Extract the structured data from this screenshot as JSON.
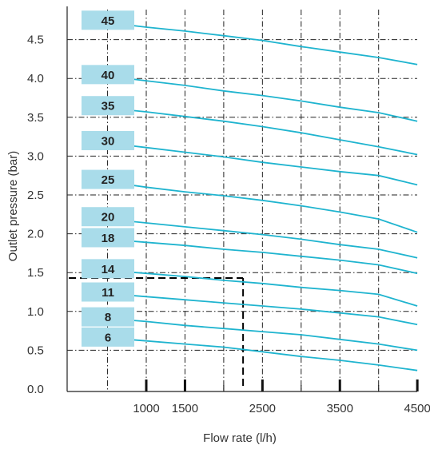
{
  "chart_data": {
    "type": "line",
    "xlabel": "Flow rate (l/h)",
    "ylabel": "Outlet pressure (bar)",
    "xlim": [
      0,
      4500
    ],
    "ylim": [
      0,
      5.0
    ],
    "x_ticks": [
      1000,
      1500,
      2500,
      3500,
      4500
    ],
    "x_tick_labels": [
      "1000",
      "1500",
      "2500",
      "3500",
      "4500"
    ],
    "x_unlabeled_ticks": [
      2000,
      3000,
      4000
    ],
    "y_ticks": [
      0,
      0.5,
      1.0,
      1.5,
      2.0,
      2.5,
      3.0,
      3.5,
      4.0,
      4.5
    ],
    "y_tick_labels": [
      "0.0",
      "0.5",
      "1.0",
      "1.5",
      "2.0",
      "2.5",
      "3.0",
      "3.5",
      "4.0",
      "4.5"
    ],
    "x_vertical_gridlines": [
      500,
      1000,
      1500,
      2000,
      2500,
      3000,
      3500,
      4000
    ],
    "grid": true,
    "grid_style": "dash-dot",
    "legend": "labels at left, on each curve",
    "line_color": "#1fb4cf",
    "label_box_color": "#a9dcea",
    "reference_color": "#000000",
    "series": [
      {
        "name": "45",
        "x": [
          0,
          500,
          1000,
          1500,
          2000,
          2500,
          3000,
          3500,
          4000,
          4500
        ],
        "y": [
          4.75,
          4.72,
          4.66,
          4.61,
          4.55,
          4.49,
          4.41,
          4.34,
          4.27,
          4.18
        ]
      },
      {
        "name": "40",
        "x": [
          0,
          500,
          1000,
          1500,
          2000,
          2500,
          3000,
          3500,
          4000,
          4500
        ],
        "y": [
          4.05,
          4.03,
          3.97,
          3.91,
          3.84,
          3.78,
          3.71,
          3.63,
          3.56,
          3.45
        ]
      },
      {
        "name": "35",
        "x": [
          0,
          500,
          1000,
          1500,
          2000,
          2500,
          3000,
          3500,
          4000,
          4500
        ],
        "y": [
          3.65,
          3.62,
          3.57,
          3.51,
          3.45,
          3.38,
          3.3,
          3.21,
          3.12,
          3.02
        ]
      },
      {
        "name": "30",
        "x": [
          0,
          500,
          1000,
          1500,
          2000,
          2500,
          3000,
          3500,
          4000,
          4500
        ],
        "y": [
          3.2,
          3.17,
          3.11,
          3.05,
          2.99,
          2.92,
          2.86,
          2.8,
          2.75,
          2.63
        ]
      },
      {
        "name": "25",
        "x": [
          0,
          500,
          1000,
          1500,
          2000,
          2500,
          3000,
          3500,
          4000,
          4500
        ],
        "y": [
          2.7,
          2.67,
          2.6,
          2.54,
          2.49,
          2.43,
          2.36,
          2.28,
          2.19,
          2.02
        ]
      },
      {
        "name": "20",
        "x": [
          0,
          500,
          1000,
          1500,
          2000,
          2500,
          3000,
          3500,
          4000,
          4500
        ],
        "y": [
          2.22,
          2.19,
          2.14,
          2.09,
          2.04,
          1.99,
          1.93,
          1.86,
          1.8,
          1.69
        ]
      },
      {
        "name": "18",
        "x": [
          0,
          500,
          1000,
          1500,
          2000,
          2500,
          3000,
          3500,
          4000,
          4500
        ],
        "y": [
          1.95,
          1.93,
          1.89,
          1.85,
          1.8,
          1.76,
          1.71,
          1.66,
          1.6,
          1.49
        ]
      },
      {
        "name": "14",
        "x": [
          0,
          500,
          1000,
          1500,
          2000,
          2500,
          3000,
          3500,
          4000,
          4500
        ],
        "y": [
          1.55,
          1.53,
          1.49,
          1.45,
          1.4,
          1.36,
          1.31,
          1.27,
          1.22,
          1.07
        ]
      },
      {
        "name": "11",
        "x": [
          0,
          500,
          1000,
          1500,
          2000,
          2500,
          3000,
          3500,
          4000,
          4500
        ],
        "y": [
          1.25,
          1.23,
          1.19,
          1.15,
          1.11,
          1.07,
          1.03,
          0.98,
          0.93,
          0.83
        ]
      },
      {
        "name": "8",
        "x": [
          0,
          500,
          1000,
          1500,
          2000,
          2500,
          3000,
          3500,
          4000,
          4500
        ],
        "y": [
          0.93,
          0.91,
          0.87,
          0.82,
          0.78,
          0.74,
          0.7,
          0.64,
          0.58,
          0.5
        ]
      },
      {
        "name": "6",
        "x": [
          0,
          500,
          1000,
          1500,
          2000,
          2500,
          3000,
          3500,
          4000,
          4500
        ],
        "y": [
          0.67,
          0.66,
          0.62,
          0.58,
          0.54,
          0.48,
          0.42,
          0.37,
          0.31,
          0.24
        ]
      }
    ],
    "reference_lines": [
      {
        "x": [
          0,
          2250
        ],
        "y": [
          1.43,
          1.43
        ]
      },
      {
        "x": [
          2250,
          2250
        ],
        "y": [
          1.43,
          0
        ]
      }
    ]
  }
}
